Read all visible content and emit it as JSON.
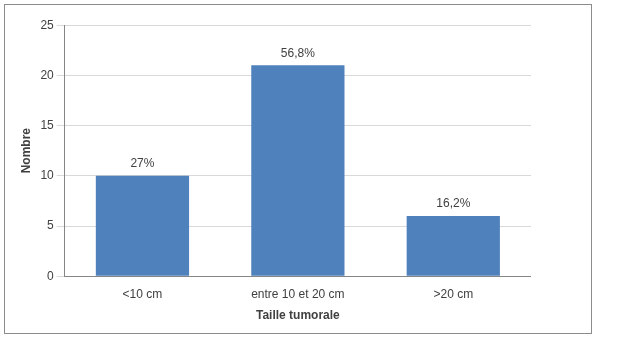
{
  "chart_data": {
    "type": "bar",
    "categories": [
      "<10 cm",
      "entre 10 et 20 cm",
      ">20 cm"
    ],
    "values": [
      10,
      21,
      6
    ],
    "annotations": [
      "27%",
      "56,8%",
      "16,2%"
    ],
    "color": "#4f81bd",
    "x_label": "Taille tumorale",
    "y_label": "Nombre",
    "ylim": [
      0,
      25
    ],
    "yticks": [
      0,
      5,
      10,
      15,
      20,
      25
    ],
    "grid": true
  }
}
